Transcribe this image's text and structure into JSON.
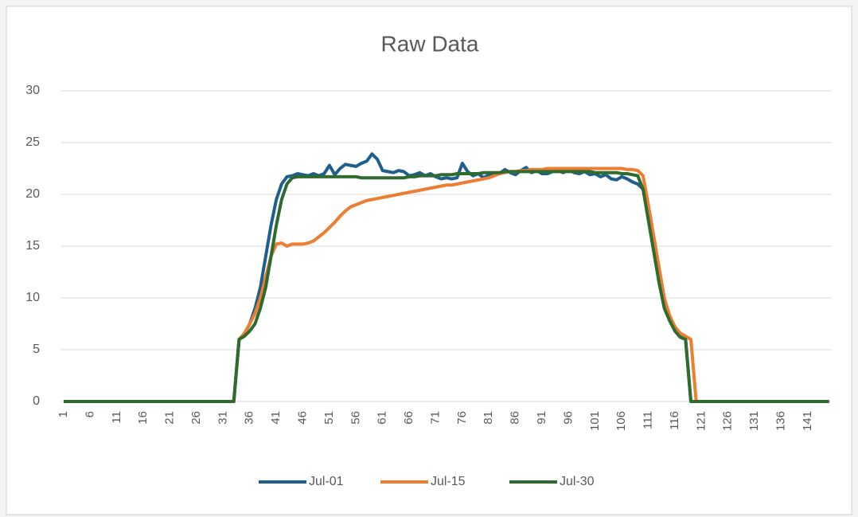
{
  "chart_data": {
    "type": "line",
    "title": "Raw Data",
    "categories": [
      1,
      null,
      null,
      null,
      null,
      6,
      null,
      null,
      null,
      null,
      11,
      null,
      null,
      null,
      null,
      16,
      null,
      null,
      null,
      null,
      21,
      null,
      null,
      null,
      null,
      26,
      null,
      null,
      null,
      null,
      31,
      null,
      null,
      null,
      null,
      36,
      null,
      null,
      null,
      null,
      41,
      null,
      null,
      null,
      null,
      46,
      null,
      null,
      null,
      null,
      51,
      null,
      null,
      null,
      null,
      56,
      null,
      null,
      null,
      null,
      61,
      null,
      null,
      null,
      null,
      66,
      null,
      null,
      null,
      null,
      71,
      null,
      null,
      null,
      null,
      76,
      null,
      null,
      null,
      null,
      81,
      null,
      null,
      null,
      null,
      86,
      null,
      null,
      null,
      null,
      91,
      null,
      null,
      null,
      null,
      96,
      null,
      null,
      null,
      null,
      101,
      null,
      null,
      null,
      null,
      106,
      null,
      null,
      null,
      null,
      111,
      null,
      null,
      null,
      null,
      116,
      null,
      null,
      null,
      null,
      121,
      null,
      null,
      null,
      null,
      126,
      null,
      null,
      null,
      null,
      131,
      null,
      null,
      null,
      null,
      136,
      null,
      null,
      null,
      null,
      141,
      null,
      null,
      null,
      null
    ],
    "series": [
      {
        "name": "Jul-01",
        "color": "#1f5f8b",
        "values": [
          0,
          0,
          0,
          0,
          0,
          0,
          0,
          0,
          0,
          0,
          0,
          0,
          0,
          0,
          0,
          0,
          0,
          0,
          0,
          0,
          0,
          0,
          0,
          0,
          0,
          0,
          0,
          0,
          0,
          0,
          0,
          0,
          0,
          6,
          6.5,
          7.5,
          9,
          11,
          14,
          17,
          19.5,
          21,
          21.7,
          21.8,
          22,
          21.9,
          21.8,
          22,
          21.8,
          22,
          22.8,
          21.9,
          22.5,
          22.9,
          22.8,
          22.7,
          23,
          23.2,
          23.9,
          23.4,
          22.3,
          22.2,
          22.1,
          22.3,
          22.2,
          21.8,
          21.9,
          22.1,
          21.8,
          22,
          21.7,
          21.5,
          21.6,
          21.5,
          21.6,
          23,
          22.2,
          21.8,
          22,
          21.6,
          21.9,
          22.1,
          22,
          22.4,
          22.1,
          21.9,
          22.3,
          22.6,
          22.1,
          22.3,
          22,
          22,
          22.2,
          22.3,
          22.1,
          22.4,
          22.1,
          22,
          22.2,
          21.9,
          22,
          21.7,
          21.9,
          21.5,
          21.4,
          21.7,
          21.5,
          21.2,
          21,
          20.5,
          18,
          15,
          12,
          9.5,
          8,
          7,
          6.3,
          6,
          0,
          0,
          0,
          0,
          0,
          0,
          0,
          0,
          0,
          0,
          0,
          0,
          0,
          0,
          0,
          0,
          0,
          0,
          0,
          0,
          0,
          0,
          0,
          0,
          0,
          0,
          0
        ]
      },
      {
        "name": "Jul-15",
        "color": "#ed7d31",
        "values": [
          0,
          0,
          0,
          0,
          0,
          0,
          0,
          0,
          0,
          0,
          0,
          0,
          0,
          0,
          0,
          0,
          0,
          0,
          0,
          0,
          0,
          0,
          0,
          0,
          0,
          0,
          0,
          0,
          0,
          0,
          0,
          0,
          0,
          6,
          6.6,
          7.5,
          8.5,
          10,
          12,
          14,
          15.2,
          15.3,
          15,
          15.2,
          15.2,
          15.2,
          15.3,
          15.5,
          15.9,
          16.3,
          16.8,
          17.3,
          17.9,
          18.4,
          18.8,
          19,
          19.2,
          19.4,
          19.5,
          19.6,
          19.7,
          19.8,
          19.9,
          20,
          20.1,
          20.2,
          20.3,
          20.4,
          20.5,
          20.6,
          20.7,
          20.8,
          20.9,
          20.9,
          21,
          21.1,
          21.2,
          21.3,
          21.4,
          21.5,
          21.6,
          21.8,
          22,
          22.1,
          22.2,
          22.2,
          22.3,
          22.3,
          22.4,
          22.4,
          22.4,
          22.5,
          22.5,
          22.5,
          22.5,
          22.5,
          22.5,
          22.5,
          22.5,
          22.5,
          22.5,
          22.5,
          22.5,
          22.5,
          22.5,
          22.5,
          22.4,
          22.4,
          22.3,
          21.8,
          19,
          16,
          13,
          10,
          8.3,
          7.2,
          6.6,
          6.3,
          6,
          0,
          0,
          0,
          0,
          0,
          0,
          0,
          0,
          0,
          0,
          0,
          0,
          0,
          0,
          0,
          0,
          0,
          0,
          0,
          0,
          0,
          0,
          0,
          0,
          0,
          0
        ]
      },
      {
        "name": "Jul-30",
        "color": "#2e6b2e",
        "values": [
          0,
          0,
          0,
          0,
          0,
          0,
          0,
          0,
          0,
          0,
          0,
          0,
          0,
          0,
          0,
          0,
          0,
          0,
          0,
          0,
          0,
          0,
          0,
          0,
          0,
          0,
          0,
          0,
          0,
          0,
          0,
          0,
          0,
          6,
          6.3,
          6.8,
          7.5,
          9,
          11,
          14,
          17,
          19.5,
          21,
          21.6,
          21.7,
          21.7,
          21.7,
          21.7,
          21.7,
          21.7,
          21.7,
          21.7,
          21.7,
          21.7,
          21.7,
          21.7,
          21.6,
          21.6,
          21.6,
          21.6,
          21.6,
          21.6,
          21.6,
          21.6,
          21.6,
          21.7,
          21.7,
          21.8,
          21.8,
          21.8,
          21.8,
          21.9,
          21.9,
          21.9,
          22,
          22,
          22,
          22,
          22,
          22.1,
          22.1,
          22.1,
          22.1,
          22.2,
          22.2,
          22.2,
          22.2,
          22.2,
          22.2,
          22.2,
          22.2,
          22.2,
          22.2,
          22.2,
          22.2,
          22.2,
          22.2,
          22.2,
          22.2,
          22.2,
          22.1,
          22.1,
          22.1,
          22.1,
          22.1,
          22,
          22,
          21.9,
          21.8,
          20.5,
          17.5,
          14.5,
          11.5,
          9,
          7.8,
          6.8,
          6.2,
          6,
          0,
          0,
          0,
          0,
          0,
          0,
          0,
          0,
          0,
          0,
          0,
          0,
          0,
          0,
          0,
          0,
          0,
          0,
          0,
          0,
          0,
          0,
          0,
          0,
          0,
          0,
          0
        ]
      }
    ],
    "ylim": [
      0,
      30
    ],
    "yticks": [
      0,
      5,
      10,
      15,
      20,
      25,
      30
    ],
    "grid": true,
    "legend": "bottom"
  }
}
